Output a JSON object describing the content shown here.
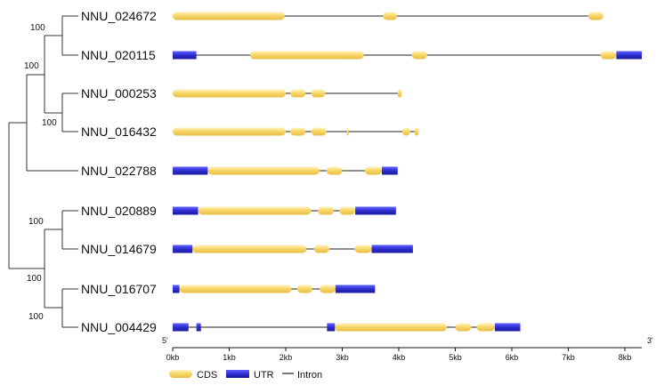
{
  "tree": {
    "bootstrap_values": [
      "100",
      "100",
      "100",
      "100",
      "100",
      "100"
    ]
  },
  "genes": [
    {
      "id": "NNU_024672",
      "length_kb": 7.6,
      "segments": [
        {
          "type": "CDS",
          "start": 0.0,
          "end": 1.98
        },
        {
          "type": "CDS",
          "start": 3.72,
          "end": 3.97
        },
        {
          "type": "CDS",
          "start": 7.35,
          "end": 7.62
        }
      ]
    },
    {
      "id": "NNU_020115",
      "length_kb": 8.3,
      "segments": [
        {
          "type": "UTR",
          "start": 0.0,
          "end": 0.42
        },
        {
          "type": "CDS",
          "start": 1.37,
          "end": 3.38
        },
        {
          "type": "CDS",
          "start": 4.23,
          "end": 4.5
        },
        {
          "type": "CDS",
          "start": 7.57,
          "end": 7.85
        },
        {
          "type": "UTR",
          "start": 7.85,
          "end": 8.3
        }
      ]
    },
    {
      "id": "NNU_000253",
      "length_kb": 4.05,
      "segments": [
        {
          "type": "CDS",
          "start": 0.0,
          "end": 2.0
        },
        {
          "type": "CDS",
          "start": 2.08,
          "end": 2.35
        },
        {
          "type": "CDS",
          "start": 2.45,
          "end": 2.7
        },
        {
          "type": "CDS",
          "start": 3.98,
          "end": 4.05
        }
      ]
    },
    {
      "id": "NNU_016432",
      "length_kb": 4.35,
      "segments": [
        {
          "type": "CDS",
          "start": 0.0,
          "end": 2.0
        },
        {
          "type": "CDS",
          "start": 2.08,
          "end": 2.35
        },
        {
          "type": "CDS",
          "start": 2.45,
          "end": 2.72
        },
        {
          "type": "CDS",
          "start": 3.08,
          "end": 3.11
        },
        {
          "type": "CDS",
          "start": 4.06,
          "end": 4.2
        },
        {
          "type": "CDS",
          "start": 4.28,
          "end": 4.35
        }
      ]
    },
    {
      "id": "NNU_022788",
      "length_kb": 3.98,
      "segments": [
        {
          "type": "UTR",
          "start": 0.0,
          "end": 0.62
        },
        {
          "type": "CDS",
          "start": 0.62,
          "end": 2.6
        },
        {
          "type": "CDS",
          "start": 2.72,
          "end": 3.0
        },
        {
          "type": "CDS",
          "start": 3.4,
          "end": 3.7
        },
        {
          "type": "UTR",
          "start": 3.7,
          "end": 3.98
        }
      ]
    },
    {
      "id": "NNU_020889",
      "length_kb": 3.95,
      "segments": [
        {
          "type": "UTR",
          "start": 0.0,
          "end": 0.45
        },
        {
          "type": "CDS",
          "start": 0.45,
          "end": 2.45
        },
        {
          "type": "CDS",
          "start": 2.57,
          "end": 2.85
        },
        {
          "type": "CDS",
          "start": 2.95,
          "end": 3.23
        },
        {
          "type": "UTR",
          "start": 3.23,
          "end": 3.95
        }
      ]
    },
    {
      "id": "NNU_014679",
      "length_kb": 4.25,
      "segments": [
        {
          "type": "UTR",
          "start": 0.0,
          "end": 0.35
        },
        {
          "type": "CDS",
          "start": 0.35,
          "end": 2.37
        },
        {
          "type": "CDS",
          "start": 2.5,
          "end": 2.77
        },
        {
          "type": "CDS",
          "start": 3.22,
          "end": 3.52
        },
        {
          "type": "UTR",
          "start": 3.52,
          "end": 4.25
        }
      ]
    },
    {
      "id": "NNU_016707",
      "length_kb": 3.58,
      "segments": [
        {
          "type": "UTR",
          "start": 0.0,
          "end": 0.12
        },
        {
          "type": "CDS",
          "start": 0.12,
          "end": 2.1
        },
        {
          "type": "CDS",
          "start": 2.2,
          "end": 2.47
        },
        {
          "type": "CDS",
          "start": 2.6,
          "end": 2.88
        },
        {
          "type": "UTR",
          "start": 2.88,
          "end": 3.58
        }
      ]
    },
    {
      "id": "NNU_004429",
      "length_kb": 6.15,
      "segments": [
        {
          "type": "UTR",
          "start": 0.0,
          "end": 0.28
        },
        {
          "type": "UTR",
          "start": 0.42,
          "end": 0.5
        },
        {
          "type": "UTR",
          "start": 2.73,
          "end": 2.87
        },
        {
          "type": "CDS",
          "start": 2.87,
          "end": 4.85
        },
        {
          "type": "CDS",
          "start": 5.0,
          "end": 5.28
        },
        {
          "type": "CDS",
          "start": 5.38,
          "end": 5.7
        },
        {
          "type": "UTR",
          "start": 5.7,
          "end": 6.15
        }
      ]
    }
  ],
  "axis": {
    "five_prime": "5'",
    "three_prime": "3'",
    "ticks": [
      "0kb",
      "1kb",
      "2kb",
      "3kb",
      "4kb",
      "5kb",
      "6kb",
      "7kb",
      "8kb"
    ],
    "tick_values_kb": [
      0,
      1,
      2,
      3,
      4,
      5,
      6,
      7,
      8
    ],
    "max_kb": 8.3
  },
  "legend": [
    {
      "key": "CDS",
      "label": "CDS"
    },
    {
      "key": "UTR",
      "label": "UTR"
    },
    {
      "key": "Intron",
      "label": "Intron"
    }
  ],
  "colors": {
    "cds": "#f6d46a",
    "cds_highlight": "#fff4c0",
    "cds_shadow": "#e2b83c",
    "utr": "#2f2fd0",
    "utr_dark": "#1a1aa0",
    "intron": "#222222",
    "tree": "#333333"
  }
}
